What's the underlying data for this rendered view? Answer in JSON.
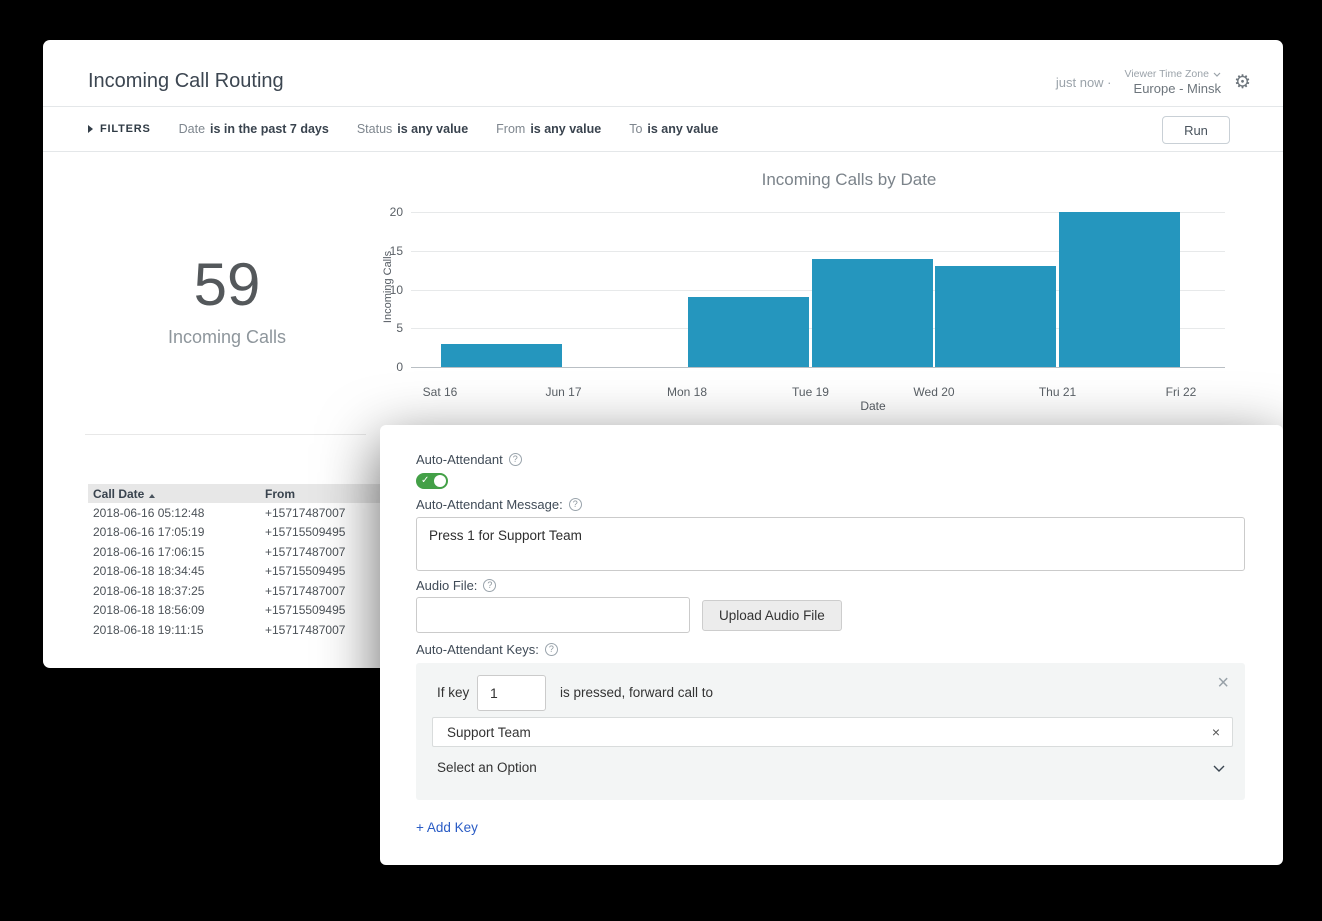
{
  "icons": {
    "gear": "⚙",
    "help": "?",
    "check": "✓",
    "close": "×",
    "remove": "×"
  },
  "header": {
    "title": "Incoming Call Routing",
    "updated": "just now ·",
    "timezone_label": "Viewer Time Zone",
    "timezone_value": "Europe - Minsk"
  },
  "filter_bar": {
    "label": "FILTERS",
    "run_label": "Run",
    "filters": [
      {
        "field": "Date",
        "value": "is in the past 7 days"
      },
      {
        "field": "Status",
        "value": "is any value"
      },
      {
        "field": "From",
        "value": "is any value"
      },
      {
        "field": "To",
        "value": "is any value"
      }
    ]
  },
  "kpi": {
    "value": "59",
    "label": "Incoming Calls"
  },
  "chart_data": {
    "type": "bar",
    "title": "Incoming Calls by Date",
    "xlabel": "Date",
    "ylabel": "Incoming Calls",
    "categories": [
      "Sat 16",
      "Jun 17",
      "Mon 18",
      "Tue 19",
      "Wed 20",
      "Thu 21",
      "Fri 22"
    ],
    "values": [
      3,
      0,
      9,
      14,
      13,
      20,
      0
    ],
    "ylim": [
      0,
      20
    ],
    "yticks": [
      0,
      5,
      10,
      15,
      20
    ],
    "bar_color": "#2596be",
    "grid": true,
    "legend": false
  },
  "call_table": {
    "columns": [
      "Call Date",
      "From"
    ],
    "sorted_by": "Call Date",
    "sort_direction": "asc",
    "rows": [
      [
        "2018-06-16 05:12:48",
        "+15717487007"
      ],
      [
        "2018-06-16 17:05:19",
        "+15715509495"
      ],
      [
        "2018-06-16 17:06:15",
        "+15717487007"
      ],
      [
        "2018-06-18 18:34:45",
        "+15715509495"
      ],
      [
        "2018-06-18 18:37:25",
        "+15717487007"
      ],
      [
        "2018-06-18 18:56:09",
        "+15715509495"
      ],
      [
        "2018-06-18 19:11:15",
        "+15717487007"
      ]
    ]
  },
  "attendant_panel": {
    "toggle_label": "Auto-Attendant",
    "toggle_on": true,
    "message_label": "Auto-Attendant Message:",
    "message_value": "Press 1 for Support Team",
    "audio_label": "Audio File:",
    "audio_value": "",
    "upload_button": "Upload Audio File",
    "keys_label": "Auto-Attendant Keys:",
    "key_rule": {
      "prefix": "If key",
      "key": "1",
      "suffix": "is pressed, forward call to",
      "target": "Support Team"
    },
    "select_placeholder": "Select an Option",
    "add_key_label": "+ Add Key"
  }
}
